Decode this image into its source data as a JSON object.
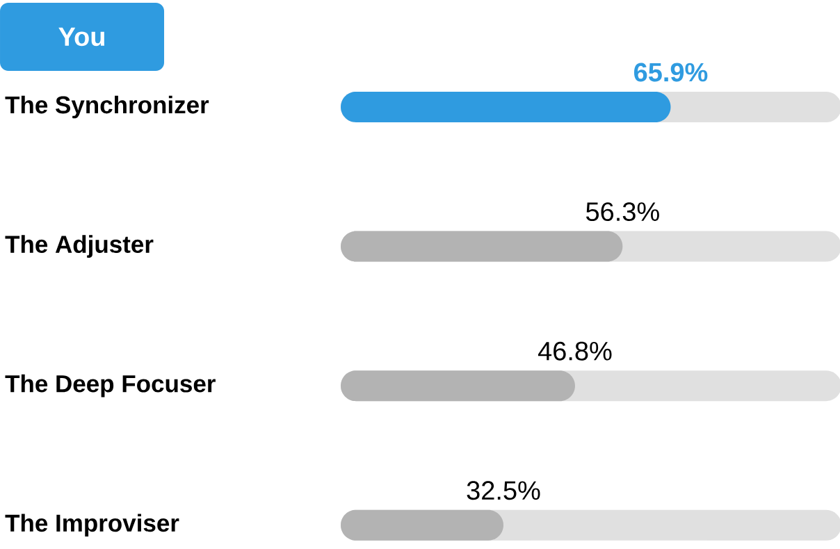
{
  "chart_data": {
    "type": "bar",
    "orientation": "horizontal",
    "categories": [
      "The Synchronizer",
      "The Adjuster",
      "The Deep Focuser",
      "The Improviser"
    ],
    "values": [
      65.9,
      56.3,
      46.8,
      32.5
    ],
    "colors": [
      "#2f9be0",
      "#b3b3b3",
      "#b3b3b3",
      "#b3b3b3"
    ],
    "value_labels": [
      "65.9%",
      "56.3%",
      "46.8%",
      "32.5%"
    ],
    "xlim": [
      0,
      100
    ],
    "tick_labels": "y",
    "annotations": [
      "You"
    ]
  }
}
